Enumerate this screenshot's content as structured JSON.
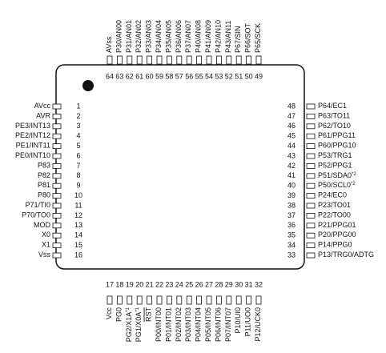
{
  "pins": {
    "top": [
      {
        "number": "64",
        "label": "AVss"
      },
      {
        "number": "63",
        "label": "P30/AN00"
      },
      {
        "number": "62",
        "label": "P31/AN01"
      },
      {
        "number": "61",
        "label": "P32/AN02"
      },
      {
        "number": "60",
        "label": "P33/AN03"
      },
      {
        "number": "59",
        "label": "P34/AN04"
      },
      {
        "number": "58",
        "label": "P35/AN05"
      },
      {
        "number": "57",
        "label": "P36/AN06"
      },
      {
        "number": "56",
        "label": "P37/AN07"
      },
      {
        "number": "55",
        "label": "P40/AN08"
      },
      {
        "number": "54",
        "label": "P41/AN09"
      },
      {
        "number": "53",
        "label": "P42/AN10"
      },
      {
        "number": "52",
        "label": "P43/AN11"
      },
      {
        "number": "51",
        "label": "P67/SIN"
      },
      {
        "number": "50",
        "label": "P66/SOT"
      },
      {
        "number": "49",
        "label": "P65/SCK"
      }
    ],
    "left": [
      {
        "number": "1",
        "label": "AVcc"
      },
      {
        "number": "2",
        "label": "AVR"
      },
      {
        "number": "3",
        "label": "PE3/INT13"
      },
      {
        "number": "4",
        "label": "PE2/INT12"
      },
      {
        "number": "5",
        "label": "PE1/INT11"
      },
      {
        "number": "6",
        "label": "PE0/INT10"
      },
      {
        "number": "7",
        "label": "P83"
      },
      {
        "number": "8",
        "label": "P82"
      },
      {
        "number": "9",
        "label": "P81"
      },
      {
        "number": "10",
        "label": "P80"
      },
      {
        "number": "11",
        "label": "P71/TI0"
      },
      {
        "number": "12",
        "label": "P70/TO0"
      },
      {
        "number": "13",
        "label": "MOD"
      },
      {
        "number": "14",
        "label": "X0"
      },
      {
        "number": "15",
        "label": "X1"
      },
      {
        "number": "16",
        "label": "Vss"
      }
    ],
    "right": [
      {
        "number": "48",
        "label": "P64/EC1"
      },
      {
        "number": "47",
        "label": "P63/TO11"
      },
      {
        "number": "46",
        "label": "P62/TO10"
      },
      {
        "number": "45",
        "label": "P61/PPG11"
      },
      {
        "number": "44",
        "label": "P60/PPG10"
      },
      {
        "number": "43",
        "label": "P53/TRG1"
      },
      {
        "number": "42",
        "label": "P52/PPG1"
      },
      {
        "number": "41",
        "label": "P51/SDA0",
        "note": "*2"
      },
      {
        "number": "40",
        "label": "P50/SCL0",
        "note": "*2"
      },
      {
        "number": "39",
        "label": "P24/EC0"
      },
      {
        "number": "38",
        "label": "P23/TO01"
      },
      {
        "number": "37",
        "label": "P22/TO00"
      },
      {
        "number": "36",
        "label": "P21/PPG01"
      },
      {
        "number": "35",
        "label": "P20/PPG00"
      },
      {
        "number": "34",
        "label": "P14/PPG0"
      },
      {
        "number": "33",
        "label": "P13/TRG0/ADTG"
      }
    ],
    "bottom": [
      {
        "number": "17",
        "label": "Vcc"
      },
      {
        "number": "18",
        "label": "PG0"
      },
      {
        "number": "19",
        "label": "PG2/X1A",
        "note": "*1"
      },
      {
        "number": "20",
        "label": "PG1/X0A",
        "note": "*1"
      },
      {
        "number": "21",
        "label": "RST",
        "overline": true
      },
      {
        "number": "22",
        "label": "P00/INT00"
      },
      {
        "number": "23",
        "label": "P01/INT01"
      },
      {
        "number": "24",
        "label": "P02/INT02"
      },
      {
        "number": "25",
        "label": "P03/INT03"
      },
      {
        "number": "26",
        "label": "P04/INT04"
      },
      {
        "number": "27",
        "label": "P05/INT05"
      },
      {
        "number": "28",
        "label": "P06/INT06"
      },
      {
        "number": "29",
        "label": "P07/INT07"
      },
      {
        "number": "30",
        "label": "P10/UI0"
      },
      {
        "number": "31",
        "label": "P11/UO0"
      },
      {
        "number": "32",
        "label": "P12/UCK0"
      }
    ]
  }
}
